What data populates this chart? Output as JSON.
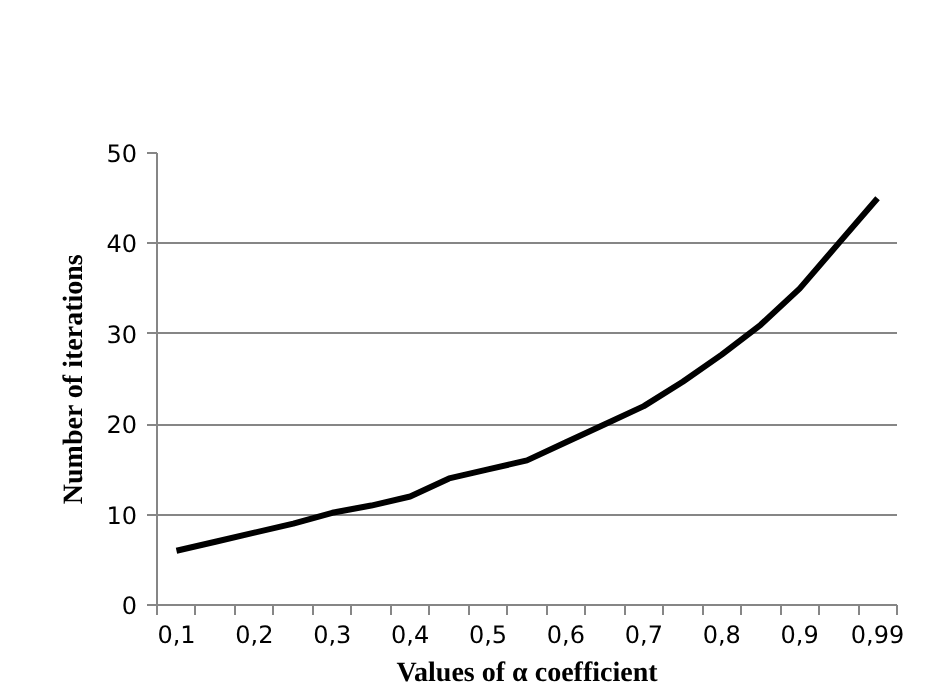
{
  "chart_data": {
    "type": "line",
    "xlabel": "Values of α coefficient",
    "ylabel": "Number of iterations",
    "categories": [
      "0,1",
      null,
      "0,2",
      null,
      "0,3",
      null,
      "0,4",
      null,
      "0,5",
      null,
      "0,6",
      null,
      "0,7",
      null,
      "0,8",
      null,
      "0,9",
      null,
      "0,99"
    ],
    "series": [
      {
        "color": "#000000",
        "values": [
          6,
          7,
          8,
          9,
          10.2,
          11,
          12,
          14,
          15,
          16,
          18,
          20,
          22,
          24.7,
          27.7,
          31,
          35,
          40,
          45
        ]
      }
    ],
    "ylim": [
      0,
      50
    ],
    "yticks": [
      0,
      10,
      20,
      30,
      40,
      50
    ],
    "grid": "y",
    "marker": "none",
    "line_style": "solid"
  }
}
